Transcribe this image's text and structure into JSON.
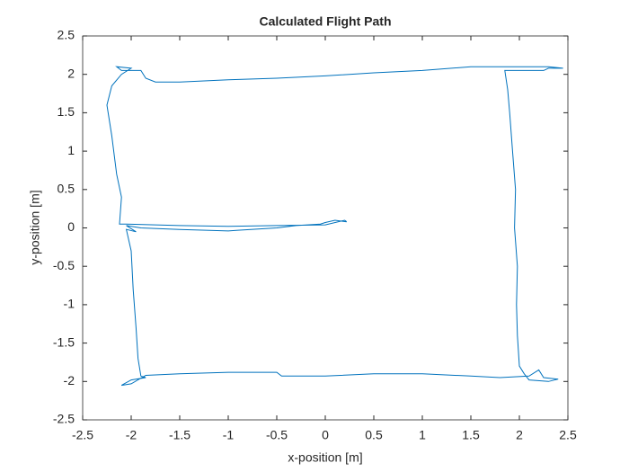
{
  "chart_data": {
    "type": "line",
    "title": "Calculated Flight Path",
    "x_label": "x-position [m]",
    "y_label": "y-position [m]",
    "xlim": [
      -2.5,
      2.5
    ],
    "ylim": [
      -2.5,
      2.5
    ],
    "xticks": [
      -2.5,
      -2,
      -1.5,
      -1,
      -0.5,
      0,
      0.5,
      1,
      1.5,
      2,
      2.5
    ],
    "yticks": [
      -2.5,
      -2,
      -1.5,
      -1,
      -0.5,
      0,
      0.5,
      1,
      1.5,
      2,
      2.5
    ],
    "grid": false,
    "series": [
      {
        "color": "#0072bd",
        "x": [
          0.22,
          0.1,
          0.0,
          -0.05,
          -0.3,
          -0.5,
          -0.9,
          -1.0,
          -1.5,
          -1.9,
          -2.0,
          -2.05,
          -1.95,
          -2.05,
          -2.0,
          -1.98,
          -1.95,
          -1.93,
          -1.9,
          -1.85,
          -2.0,
          -2.1,
          -2.0,
          -1.85,
          -1.5,
          -1.0,
          -0.5,
          -0.45,
          0.0,
          0.5,
          1.0,
          1.5,
          1.8,
          2.1,
          2.2,
          2.25,
          2.4,
          2.3,
          2.1,
          2.05,
          2.0,
          1.98,
          1.97,
          1.98,
          1.95,
          1.96,
          1.93,
          1.9,
          1.88,
          1.85,
          2.0,
          2.25,
          2.3,
          2.45,
          2.3,
          1.5,
          1.0,
          0.5,
          0.0,
          -0.5,
          -1.0,
          -1.5,
          -1.75,
          -1.85,
          -1.9,
          -2.1,
          -2.15,
          -2.0,
          -2.1,
          -2.2,
          -2.25,
          -2.2,
          -2.15,
          -2.1,
          -2.12,
          -2.05,
          -1.5,
          -1.0,
          -0.5,
          0.0,
          0.2,
          0.22
        ],
        "values": [
          0.08,
          0.1,
          0.07,
          0.05,
          0.03,
          0.0,
          -0.03,
          -0.04,
          -0.02,
          0.0,
          0.02,
          0.03,
          -0.05,
          -0.02,
          -0.3,
          -0.8,
          -1.3,
          -1.7,
          -1.93,
          -1.95,
          -1.98,
          -2.05,
          -2.03,
          -1.92,
          -1.9,
          -1.88,
          -1.88,
          -1.93,
          -1.93,
          -1.9,
          -1.9,
          -1.93,
          -1.95,
          -1.93,
          -1.85,
          -1.95,
          -1.97,
          -2.0,
          -1.98,
          -1.9,
          -1.8,
          -1.4,
          -1.0,
          -0.5,
          0.0,
          0.5,
          1.0,
          1.5,
          1.8,
          2.05,
          2.05,
          2.05,
          2.08,
          2.08,
          2.1,
          2.1,
          2.05,
          2.02,
          1.98,
          1.95,
          1.93,
          1.9,
          1.9,
          1.95,
          2.05,
          2.05,
          2.1,
          2.08,
          2.0,
          1.85,
          1.6,
          1.2,
          0.7,
          0.4,
          0.05,
          0.05,
          0.03,
          0.02,
          0.03,
          0.04,
          0.1,
          0.08
        ]
      }
    ]
  }
}
